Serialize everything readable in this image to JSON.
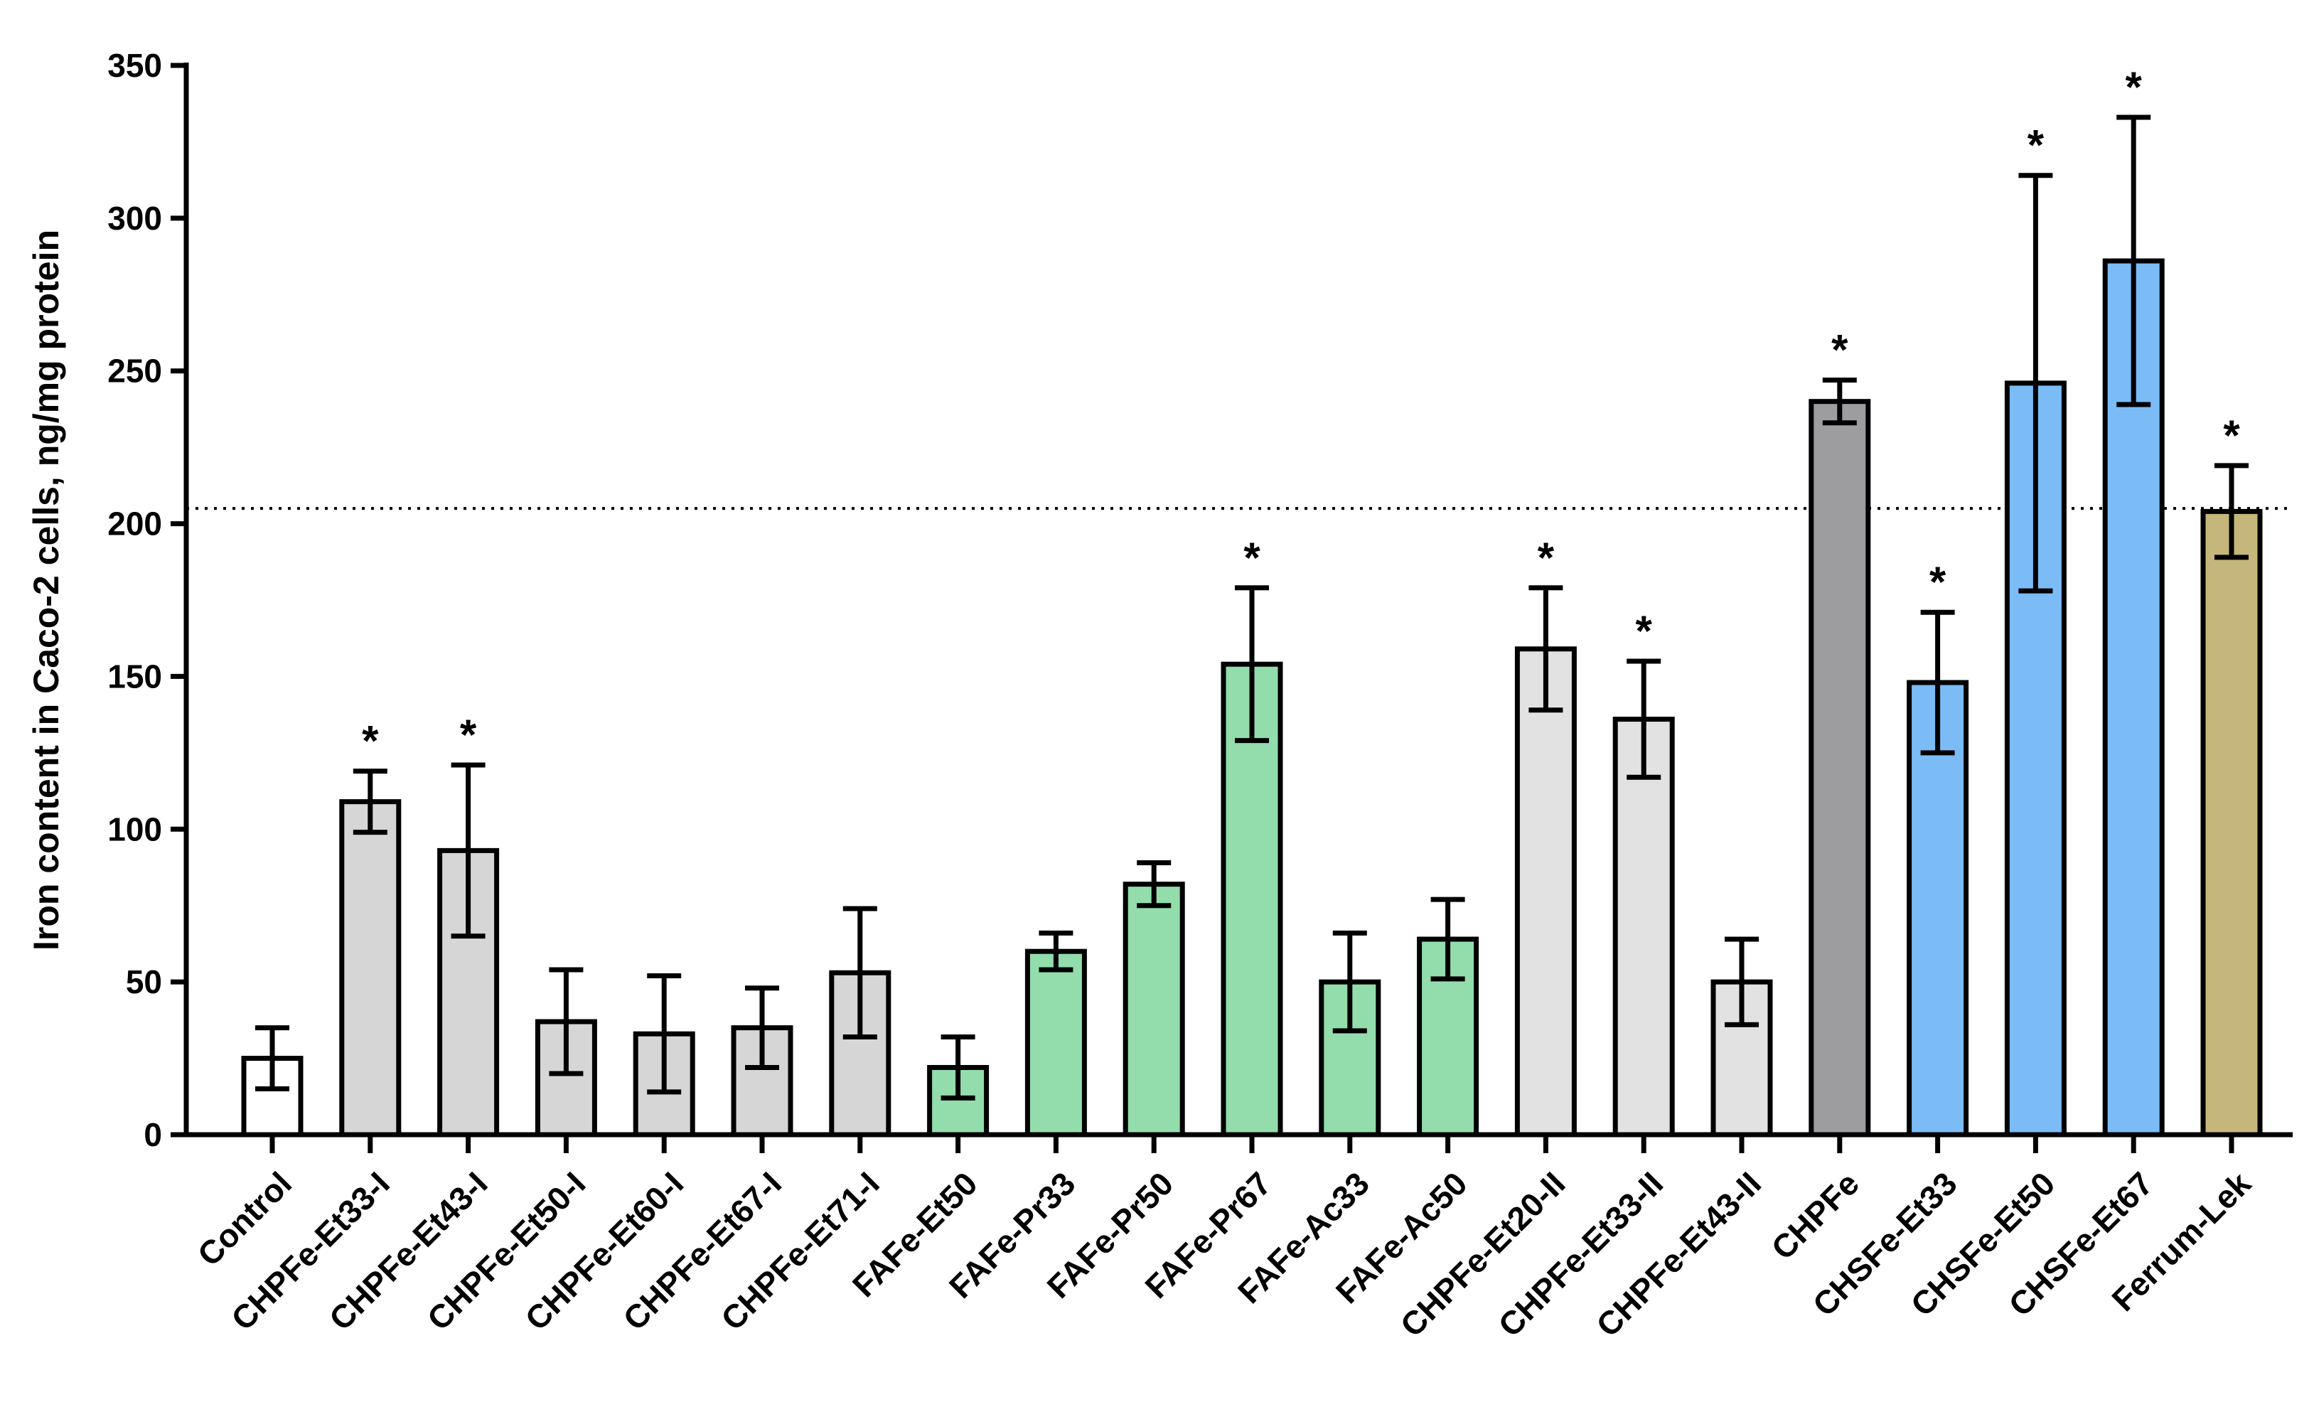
{
  "chart_data": {
    "type": "bar",
    "title": "",
    "xlabel": "",
    "ylabel": "Iron content in Caco-2 cells, ng/mg protein",
    "ylim": [
      0,
      350
    ],
    "yticks": [
      "0",
      "50",
      "100",
      "150",
      "200",
      "250",
      "300",
      "350"
    ],
    "reference_line": 205,
    "significance_marker": "*",
    "categories": [
      "Control",
      "CHPFe-Et33-I",
      "CHPFe-Et43-I",
      "CHPFe-Et50-I",
      "CHPFe-Et60-I",
      "CHPFe-Et67-I",
      "CHPFe-Et71-I",
      "FAFe-Et50",
      "FAFe-Pr33",
      "FAFe-Pr50",
      "FAFe-Pr67",
      "FAFe-Ac33",
      "FAFe-Ac50",
      "CHPFe-Et20-II",
      "CHPFe-Et33-II",
      "CHPFe-Et43-II",
      "CHPFe",
      "CHSFe-Et33",
      "CHSFe-Et50",
      "CHSFe-Et67",
      "Ferrum-Lek"
    ],
    "values": [
      25,
      109,
      93,
      37,
      33,
      35,
      53,
      22,
      60,
      82,
      154,
      50,
      64,
      159,
      136,
      50,
      240,
      148,
      246,
      286,
      204
    ],
    "errors": [
      10,
      10,
      28,
      17,
      19,
      13,
      21,
      10,
      6,
      7,
      25,
      16,
      13,
      20,
      19,
      14,
      7,
      23,
      68,
      47,
      15
    ],
    "significant": [
      false,
      true,
      true,
      false,
      false,
      false,
      false,
      false,
      false,
      false,
      true,
      false,
      false,
      true,
      true,
      false,
      true,
      true,
      true,
      true,
      true
    ],
    "colors": [
      "#ffffff",
      "#d6d6d6",
      "#d6d6d6",
      "#d6d6d6",
      "#d6d6d6",
      "#d6d6d6",
      "#d6d6d6",
      "#93dcac",
      "#93dcac",
      "#93dcac",
      "#93dcac",
      "#93dcac",
      "#93dcac",
      "#e2e2e2",
      "#e2e2e2",
      "#e2e2e2",
      "#9d9da0",
      "#7bbcf7",
      "#7bbcf7",
      "#7bbcf7",
      "#c5b67c"
    ]
  }
}
